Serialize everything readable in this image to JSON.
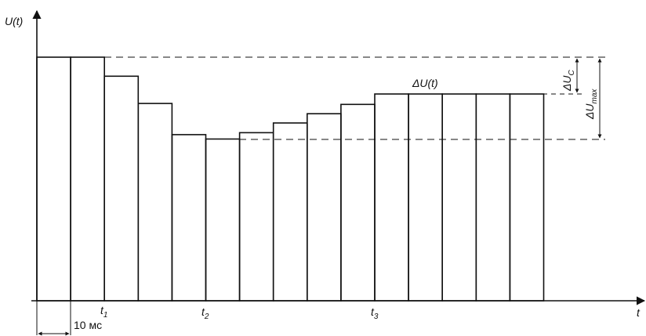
{
  "labels": {
    "y_axis": "U(t)",
    "x_axis": "t",
    "t1": "1",
    "t2": "2",
    "t3": "3",
    "t_letter": "t",
    "time_step": "10 мс",
    "delta_u_t": "ΔU(t)",
    "delta_u_c_main": "ΔU",
    "delta_u_c_sub": "C",
    "delta_u_max_main": "ΔU",
    "delta_u_max_sub": "max"
  },
  "samples": {
    "count": 15,
    "sample_period_ms": 10,
    "relative_levels": [
      1.0,
      1.0,
      0.922,
      0.81,
      0.682,
      0.664,
      0.69,
      0.73,
      0.768,
      0.806,
      0.849,
      0.849,
      0.849,
      0.849,
      0.849
    ]
  },
  "reference_levels": {
    "top_dashed": 1.0,
    "lower_dashed": 0.664
  },
  "colors": {
    "line": "#111111",
    "background": "#ffffff"
  }
}
